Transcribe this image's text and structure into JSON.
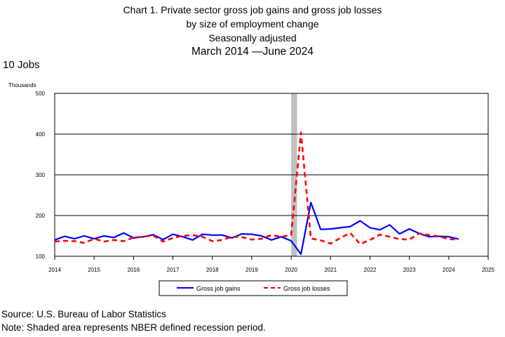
{
  "header": {
    "title_line1": "Chart 1. Private sector gross job gains and gross job losses",
    "title_line2": "by size of employment change",
    "title_line3": "Seasonally adjusted",
    "title_line4": "March 2014 —June 2024",
    "subtitle": "10 Jobs",
    "units": "Thousands"
  },
  "footer": {
    "source": "Source: U.S. Bureau of Labor Statistics",
    "note": "Note: Shaded area represents NBER defined recession period."
  },
  "colors": {
    "gains": "#0000ff",
    "losses": "#ff0000",
    "recession": "#c0c0c0"
  },
  "chart_data": {
    "type": "line",
    "ylim": [
      100,
      500
    ],
    "xlim": [
      2014,
      2025
    ],
    "y_ticks": [
      "100",
      "200",
      "300",
      "400",
      "500"
    ],
    "x_ticks": [
      "2014",
      "2015",
      "2016",
      "2017",
      "2018",
      "2019",
      "2020",
      "2021",
      "2022",
      "2023",
      "2024",
      "2025"
    ],
    "grid": true,
    "legend_position": "bottom",
    "recession": {
      "start": 2020.0,
      "end": 2020.15
    },
    "series": [
      {
        "name": "Gross job gains",
        "style": "solid",
        "x": [
          2014.0,
          2014.25,
          2014.5,
          2014.75,
          2015.0,
          2015.25,
          2015.5,
          2015.75,
          2016.0,
          2016.25,
          2016.5,
          2016.75,
          2017.0,
          2017.25,
          2017.5,
          2017.75,
          2018.0,
          2018.25,
          2018.5,
          2018.75,
          2019.0,
          2019.25,
          2019.5,
          2019.75,
          2020.0,
          2020.25,
          2020.5,
          2020.75,
          2021.0,
          2021.25,
          2021.5,
          2021.75,
          2022.0,
          2022.25,
          2022.5,
          2022.75,
          2023.0,
          2023.25,
          2023.5,
          2023.75,
          2024.0,
          2024.25
        ],
        "values": [
          140,
          149,
          143,
          150,
          143,
          150,
          146,
          157,
          145,
          148,
          153,
          141,
          154,
          148,
          140,
          154,
          152,
          152,
          145,
          155,
          154,
          150,
          140,
          148,
          138,
          105,
          232,
          166,
          167,
          170,
          173,
          187,
          170,
          165,
          177,
          155,
          167,
          156,
          148,
          149,
          148,
          142
        ]
      },
      {
        "name": "Gross job losses",
        "style": "dashed",
        "x": [
          2014.0,
          2014.25,
          2014.5,
          2014.75,
          2015.0,
          2015.25,
          2015.5,
          2015.75,
          2016.0,
          2016.25,
          2016.5,
          2016.75,
          2017.0,
          2017.25,
          2017.5,
          2017.75,
          2018.0,
          2018.25,
          2018.5,
          2018.75,
          2019.0,
          2019.25,
          2019.5,
          2019.75,
          2020.0,
          2020.25,
          2020.5,
          2020.75,
          2021.0,
          2021.25,
          2021.5,
          2021.75,
          2022.0,
          2022.25,
          2022.5,
          2022.75,
          2023.0,
          2023.25,
          2023.5,
          2023.75,
          2024.0,
          2024.25
        ],
        "values": [
          136,
          138,
          137,
          133,
          143,
          136,
          140,
          137,
          146,
          148,
          151,
          136,
          145,
          150,
          152,
          148,
          137,
          140,
          148,
          147,
          141,
          143,
          152,
          148,
          152,
          404,
          144,
          139,
          131,
          145,
          157,
          130,
          140,
          153,
          148,
          142,
          141,
          156,
          152,
          149,
          142,
          141
        ]
      }
    ]
  }
}
